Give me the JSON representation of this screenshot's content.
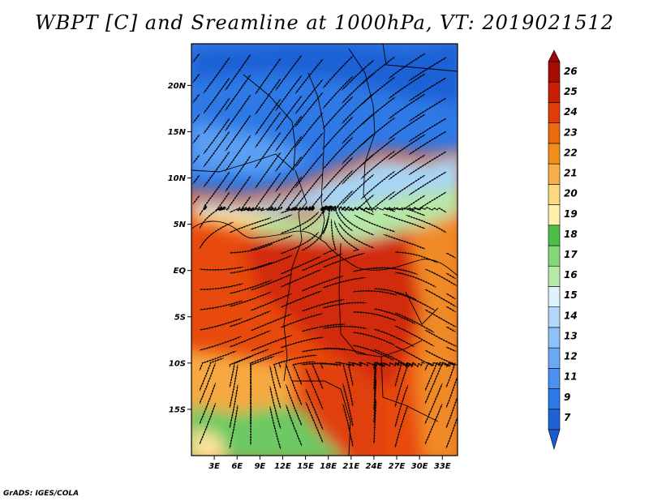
{
  "title": "WBPT [C] and Sreamline at 1000hPa, VT: 2019021512",
  "credit": "GrADS: IGES/COLA",
  "map": {
    "lon_range": [
      0,
      35
    ],
    "lat_range": [
      -20,
      24.5
    ],
    "lat_ticks": [
      {
        "value": 20,
        "label": "20N"
      },
      {
        "value": 15,
        "label": "15N"
      },
      {
        "value": 10,
        "label": "10N"
      },
      {
        "value": 5,
        "label": "5N"
      },
      {
        "value": 0,
        "label": "EQ"
      },
      {
        "value": -5,
        "label": "5S"
      },
      {
        "value": -10,
        "label": "10S"
      },
      {
        "value": -15,
        "label": "15S"
      }
    ],
    "lon_ticks": [
      {
        "value": 3,
        "label": "3E"
      },
      {
        "value": 6,
        "label": "6E"
      },
      {
        "value": 9,
        "label": "9E"
      },
      {
        "value": 12,
        "label": "12E"
      },
      {
        "value": 15,
        "label": "15E"
      },
      {
        "value": 18,
        "label": "18E"
      },
      {
        "value": 21,
        "label": "21E"
      },
      {
        "value": 24,
        "label": "24E"
      },
      {
        "value": 27,
        "label": "27E"
      },
      {
        "value": 30,
        "label": "30E"
      },
      {
        "value": 33,
        "label": "33E"
      }
    ]
  },
  "colorbar": {
    "labels": [
      "7",
      "9",
      "11",
      "12",
      "13",
      "14",
      "15",
      "16",
      "17",
      "18",
      "19",
      "20",
      "21",
      "22",
      "23",
      "24",
      "25",
      "26"
    ],
    "colors": [
      "#1f62d6",
      "#2e78ea",
      "#4a90f2",
      "#6aa8f6",
      "#8ec1f8",
      "#b3d8fb",
      "#e0f3fc",
      "#b8eba8",
      "#84d878",
      "#4cbf49",
      "#fff2ae",
      "#fcd97e",
      "#f6b14a",
      "#f18e1c",
      "#ea6a10",
      "#df3e0a",
      "#c81e06",
      "#a80a04"
    ],
    "under_color": "#1a5ad0",
    "over_color": "#9a0805"
  }
}
